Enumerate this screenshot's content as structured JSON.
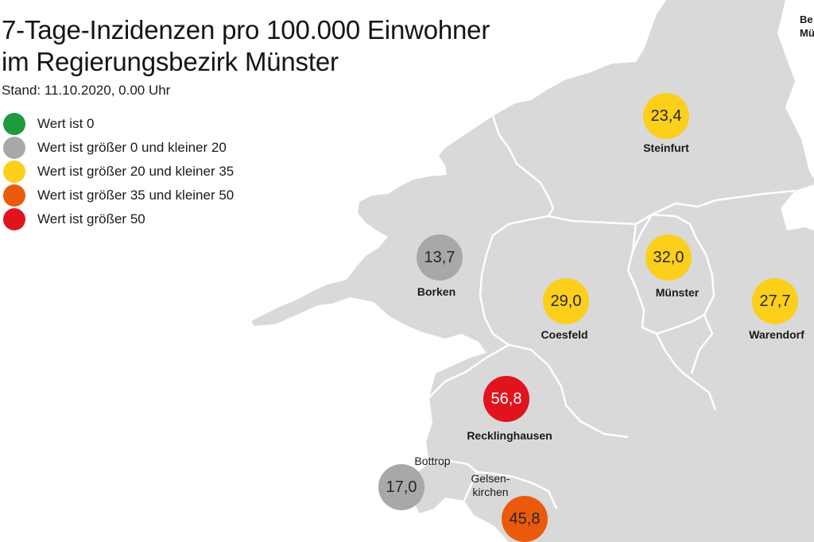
{
  "title": {
    "line1": "7-Tage-Inzidenzen pro 100.000 Einwohner",
    "line2": "im Regierungsbezirk Münster"
  },
  "stand": "Stand: 11.10.2020, 0.00 Uhr",
  "corner_text": {
    "line1": "Be",
    "line2": "Mü"
  },
  "legend": [
    {
      "label": "Wert ist 0",
      "color": "#1e9a3c"
    },
    {
      "label": "Wert ist größer 0 und kleiner 20",
      "color": "#a8a8a8"
    },
    {
      "label": "Wert ist größer 20 und kleiner 35",
      "color": "#fccf1a"
    },
    {
      "label": "Wert ist größer 35 und kleiner 50",
      "color": "#ea5a0c"
    },
    {
      "label": "Wert ist größer 50",
      "color": "#e1141e"
    }
  ],
  "colors": {
    "land": "#d9d9d9",
    "border": "#ffffff",
    "gray": "#a8a8a8",
    "yellow": "#fccf1a",
    "orange": "#ea5a0c",
    "red": "#e1141e"
  },
  "districts": [
    {
      "name": "Steinfurt",
      "value": "23,4",
      "color": "#fccf1a"
    },
    {
      "name": "Borken",
      "value": "13,7",
      "color": "#a8a8a8"
    },
    {
      "name": "Münster",
      "value": "32,0",
      "color": "#fccf1a"
    },
    {
      "name": "Coesfeld",
      "value": "29,0",
      "color": "#fccf1a"
    },
    {
      "name": "Warendorf",
      "value": "27,7",
      "color": "#fccf1a"
    },
    {
      "name": "Recklinghausen",
      "value": "56,8",
      "color": "#e1141e"
    },
    {
      "name": "Bottrop",
      "value": "17,0",
      "color": "#a8a8a8"
    },
    {
      "name_line1": "Gelsen-",
      "name_line2": "kirchen",
      "value": "45,8",
      "color": "#ea5a0c"
    }
  ]
}
